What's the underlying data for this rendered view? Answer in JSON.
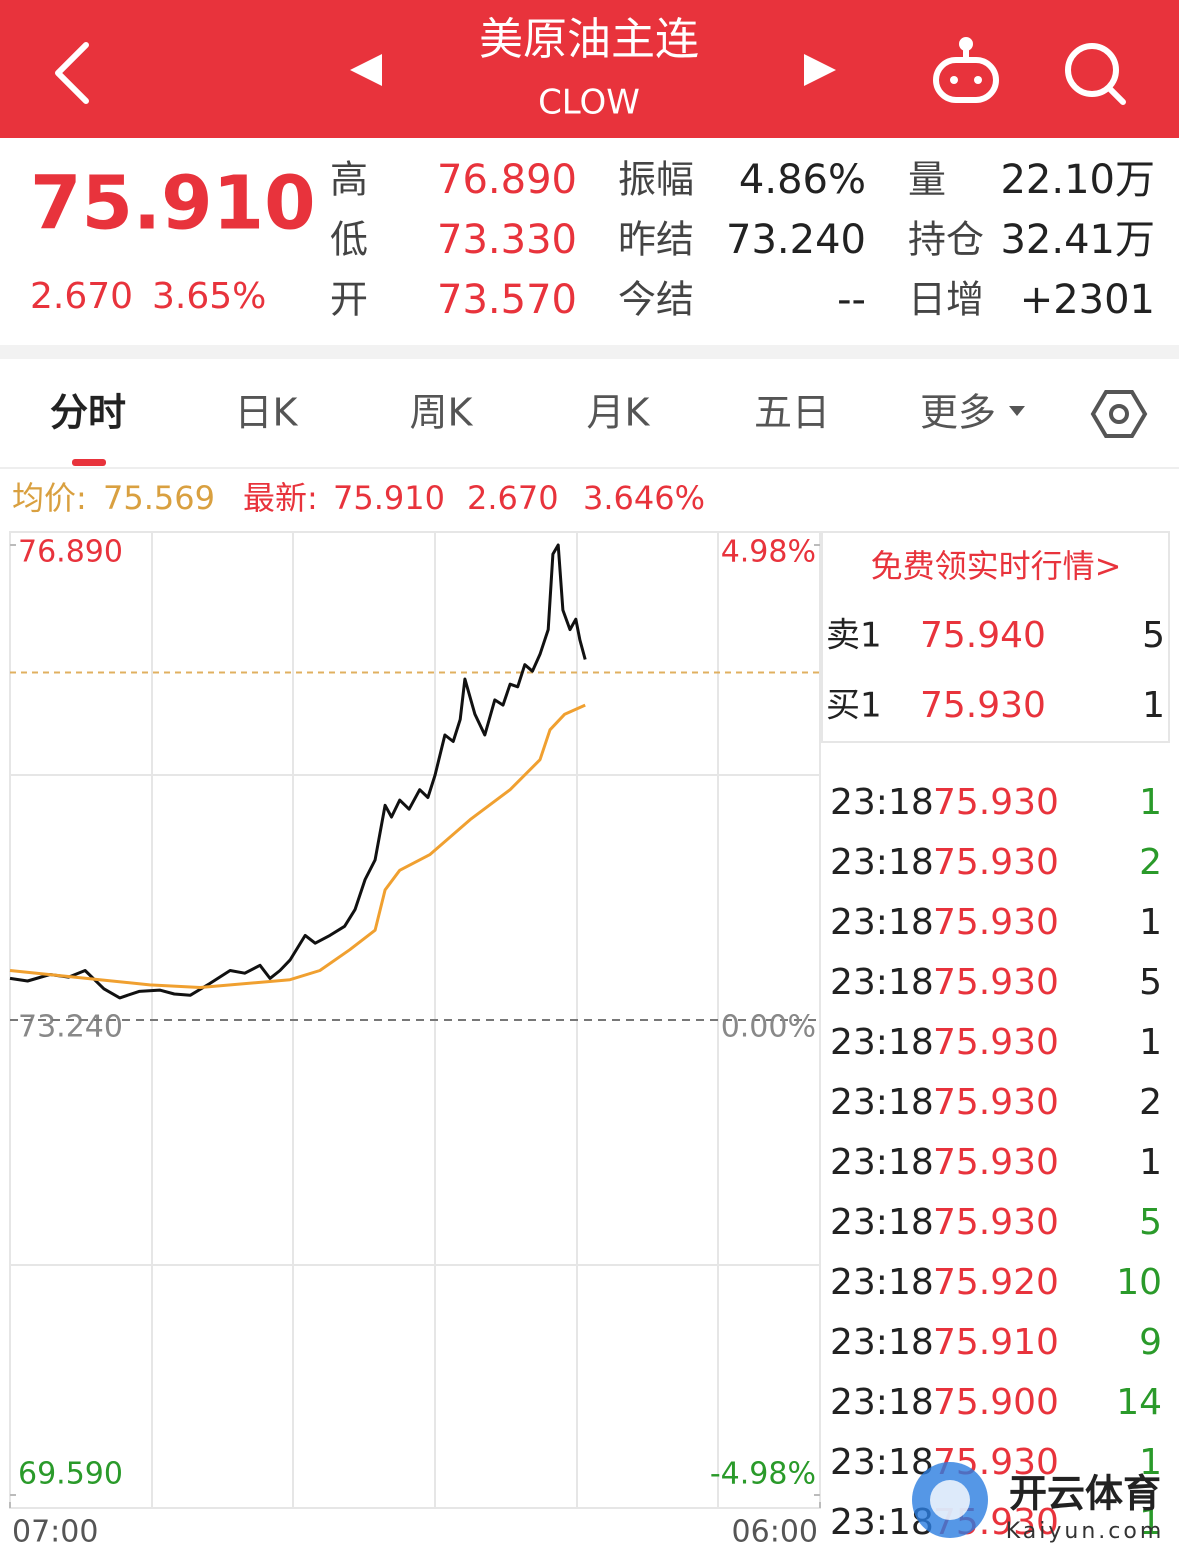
{
  "header": {
    "title": "美原油主连",
    "code": "CLOW"
  },
  "quote": {
    "price": "75.910",
    "change": "2.670",
    "change_pct": "3.65%",
    "stats": [
      [
        {
          "label": "高",
          "value": "76.890"
        },
        {
          "label": "振幅",
          "value": "4.86%"
        },
        {
          "label": "量",
          "value": "22.10万"
        }
      ],
      [
        {
          "label": "低",
          "value": "73.330"
        },
        {
          "label": "昨结",
          "value": "73.240"
        },
        {
          "label": "持仓",
          "value": "32.41万"
        }
      ],
      [
        {
          "label": "开",
          "value": "73.570"
        },
        {
          "label": "今结",
          "value": "--"
        },
        {
          "label": "日增",
          "value": "+2301"
        }
      ]
    ]
  },
  "tabs": [
    "分时",
    "日K",
    "周K",
    "月K",
    "五日",
    "更多"
  ],
  "info": {
    "avg_label": "均价:",
    "avg": "75.569",
    "latest_label": "最新:",
    "latest": "75.910",
    "change": "2.670",
    "change_pct": "3.646%"
  },
  "chart": {
    "type": "line",
    "xlim": [
      0,
      1380
    ],
    "xticks": [
      {
        "value": 0,
        "label": "07:00"
      },
      {
        "value": 1380,
        "label": "06:00"
      }
    ],
    "ylim": [
      69.59,
      76.89
    ],
    "yticks": [
      {
        "value": 76.89,
        "label": "76.890"
      },
      {
        "value": 73.24,
        "label": "73.240"
      },
      {
        "value": 69.59,
        "label": "69.590"
      }
    ],
    "y2lim": [
      -4.98,
      4.98
    ],
    "y2ticks": [
      {
        "value": 4.98,
        "label": "4.98%"
      },
      {
        "value": 0,
        "label": "0.00%"
      },
      {
        "value": -4.98,
        "label": "-4.98%"
      }
    ],
    "last_price": 75.91,
    "series": [
      {
        "color": "#111111",
        "x": [
          0,
          30,
          68,
          100,
          128,
          160,
          187,
          220,
          255,
          280,
          307,
          340,
          375,
          400,
          426,
          443,
          460,
          477,
          503,
          520,
          545,
          570,
          588,
          605,
          622,
          639,
          650,
          664,
          680,
          698,
          712,
          724,
          741,
          755,
          767,
          775,
          792,
          809,
          826,
          840,
          852,
          865,
          877,
          890,
          903,
          917,
          925,
          934,
          942,
          954,
          964,
          971,
          980
        ],
        "values": [
          73.56,
          73.54,
          73.59,
          73.57,
          73.62,
          73.48,
          73.41,
          73.46,
          73.47,
          73.44,
          73.43,
          73.52,
          73.62,
          73.6,
          73.66,
          73.56,
          73.62,
          73.7,
          73.89,
          73.83,
          73.89,
          73.96,
          74.09,
          74.32,
          74.47,
          74.89,
          74.8,
          74.93,
          74.86,
          75.01,
          74.95,
          75.12,
          75.43,
          75.38,
          75.55,
          75.86,
          75.59,
          75.43,
          75.7,
          75.66,
          75.82,
          75.8,
          75.97,
          75.92,
          76.05,
          76.24,
          76.82,
          76.89,
          76.39,
          76.24,
          76.32,
          76.16,
          76.01
        ]
      },
      {
        "color": "#f0a030",
        "x": [
          0,
          153,
          238,
          324,
          477,
          528,
          579,
          622,
          639,
          664,
          715,
          784,
          852,
          903,
          920,
          945,
          980
        ],
        "values": [
          73.62,
          73.55,
          73.51,
          73.49,
          73.55,
          73.62,
          73.78,
          73.93,
          74.24,
          74.39,
          74.51,
          74.78,
          75.01,
          75.24,
          75.47,
          75.59,
          75.66
        ]
      }
    ]
  },
  "order_book": {
    "promo": "免费领实时行情>",
    "levels": [
      {
        "side": "卖1",
        "price": "75.940",
        "volume": "5"
      },
      {
        "side": "买1",
        "price": "75.930",
        "volume": "1"
      }
    ]
  },
  "trades": [
    {
      "time": "23:18",
      "price": "75.930",
      "volume": "1",
      "color": "#2a9a2a"
    },
    {
      "time": "23:18",
      "price": "75.930",
      "volume": "2",
      "color": "#2a9a2a"
    },
    {
      "time": "23:18",
      "price": "75.930",
      "volume": "1",
      "color": "#222222"
    },
    {
      "time": "23:18",
      "price": "75.930",
      "volume": "5",
      "color": "#222222"
    },
    {
      "time": "23:18",
      "price": "75.930",
      "volume": "1",
      "color": "#222222"
    },
    {
      "time": "23:18",
      "price": "75.930",
      "volume": "2",
      "color": "#222222"
    },
    {
      "time": "23:18",
      "price": "75.930",
      "volume": "1",
      "color": "#222222"
    },
    {
      "time": "23:18",
      "price": "75.930",
      "volume": "5",
      "color": "#2a9a2a"
    },
    {
      "time": "23:18",
      "price": "75.920",
      "volume": "10",
      "color": "#2a9a2a"
    },
    {
      "time": "23:18",
      "price": "75.910",
      "volume": "9",
      "color": "#2a9a2a"
    },
    {
      "time": "23:18",
      "price": "75.900",
      "volume": "14",
      "color": "#2a9a2a"
    },
    {
      "time": "23:18",
      "price": "75.930",
      "volume": "1",
      "color": "#2a9a2a"
    },
    {
      "time": "23:18",
      "price": "75.930",
      "volume": "1",
      "color": "#2a9a2a"
    }
  ],
  "watermark": {
    "text": "开云体育",
    "url": "Kaiyun.com"
  }
}
